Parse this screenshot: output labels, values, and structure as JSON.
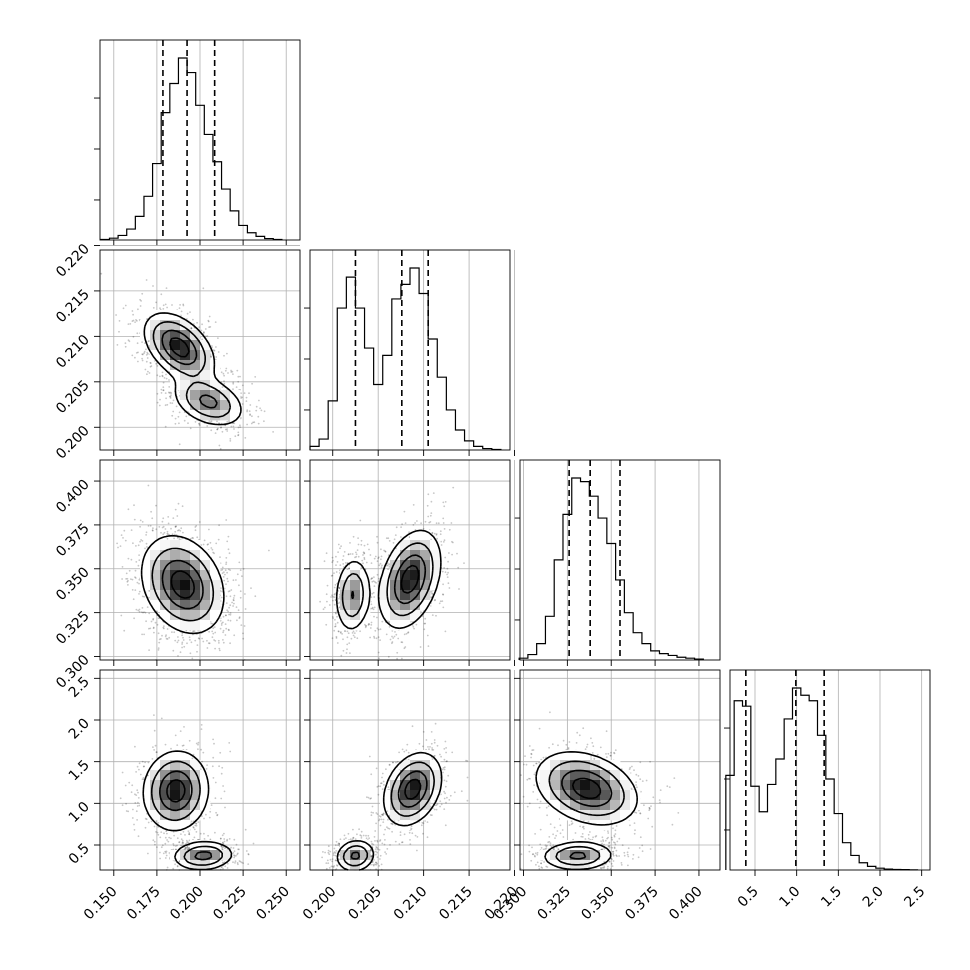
{
  "chart_data": {
    "type": "corner",
    "grid": true,
    "parameters": [
      {
        "range": [
          0.142,
          0.258
        ],
        "ticks": [
          "0.150",
          "0.175",
          "0.200",
          "0.225",
          "0.250"
        ],
        "hist": [
          [
            0.145,
            0.003
          ],
          [
            0.15,
            0.01
          ],
          [
            0.155,
            0.025
          ],
          [
            0.16,
            0.06
          ],
          [
            0.165,
            0.13
          ],
          [
            0.17,
            0.24
          ],
          [
            0.175,
            0.42
          ],
          [
            0.18,
            0.7
          ],
          [
            0.185,
            0.86
          ],
          [
            0.19,
            1.0
          ],
          [
            0.195,
            0.92
          ],
          [
            0.2,
            0.74
          ],
          [
            0.205,
            0.58
          ],
          [
            0.21,
            0.43
          ],
          [
            0.215,
            0.28
          ],
          [
            0.22,
            0.16
          ],
          [
            0.225,
            0.08
          ],
          [
            0.23,
            0.04
          ],
          [
            0.235,
            0.02
          ],
          [
            0.24,
            0.008
          ],
          [
            0.245,
            0.003
          ]
        ],
        "quantiles": [
          0.1785,
          0.1925,
          0.2085
        ]
      },
      {
        "range": [
          0.1975,
          0.2195
        ],
        "ticks": [
          "0.200",
          "0.205",
          "0.210",
          "0.215",
          "0.220"
        ],
        "yticks": [
          "0.200",
          "0.205",
          "0.210",
          "0.215",
          "0.220"
        ],
        "hist": [
          [
            0.198,
            0.02
          ],
          [
            0.199,
            0.06
          ],
          [
            0.2,
            0.27
          ],
          [
            0.201,
            0.78
          ],
          [
            0.202,
            0.95
          ],
          [
            0.203,
            0.78
          ],
          [
            0.204,
            0.56
          ],
          [
            0.205,
            0.36
          ],
          [
            0.206,
            0.52
          ],
          [
            0.207,
            0.83
          ],
          [
            0.208,
            0.91
          ],
          [
            0.209,
            1.0
          ],
          [
            0.21,
            0.86
          ],
          [
            0.211,
            0.61
          ],
          [
            0.212,
            0.4
          ],
          [
            0.213,
            0.22
          ],
          [
            0.214,
            0.11
          ],
          [
            0.215,
            0.05
          ],
          [
            0.216,
            0.02
          ],
          [
            0.217,
            0.008
          ],
          [
            0.218,
            0.003
          ]
        ],
        "quantiles": [
          0.2025,
          0.2076,
          0.2105
        ]
      },
      {
        "range": [
          0.298,
          0.412
        ],
        "ticks": [
          "0.300",
          "0.325",
          "0.350",
          "0.375",
          "0.400"
        ],
        "yticks": [
          "0.300",
          "0.325",
          "0.350",
          "0.375",
          "0.400"
        ],
        "hist": [
          [
            0.3,
            0.01
          ],
          [
            0.305,
            0.03
          ],
          [
            0.31,
            0.09
          ],
          [
            0.315,
            0.24
          ],
          [
            0.32,
            0.55
          ],
          [
            0.325,
            0.8
          ],
          [
            0.33,
            1.0
          ],
          [
            0.335,
            0.98
          ],
          [
            0.34,
            0.9
          ],
          [
            0.345,
            0.78
          ],
          [
            0.35,
            0.64
          ],
          [
            0.355,
            0.44
          ],
          [
            0.36,
            0.26
          ],
          [
            0.365,
            0.15
          ],
          [
            0.37,
            0.09
          ],
          [
            0.375,
            0.05
          ],
          [
            0.38,
            0.035
          ],
          [
            0.385,
            0.025
          ],
          [
            0.39,
            0.015
          ],
          [
            0.395,
            0.01
          ],
          [
            0.4,
            0.005
          ]
        ],
        "quantiles": [
          0.326,
          0.338,
          0.355
        ]
      },
      {
        "range": [
          0.2,
          2.6
        ],
        "ticks": [
          "0.5",
          "1.0",
          "1.5",
          "2.0",
          "2.5"
        ],
        "yticks": [
          "0.5",
          "1.0",
          "1.5",
          "2.0",
          "2.5"
        ],
        "hist": [
          [
            0.2,
            0.52
          ],
          [
            0.3,
            0.93
          ],
          [
            0.4,
            0.9
          ],
          [
            0.5,
            0.46
          ],
          [
            0.6,
            0.32
          ],
          [
            0.7,
            0.47
          ],
          [
            0.8,
            0.61
          ],
          [
            0.9,
            0.83
          ],
          [
            1.0,
            1.0
          ],
          [
            1.1,
            0.96
          ],
          [
            1.2,
            0.93
          ],
          [
            1.3,
            0.74
          ],
          [
            1.4,
            0.5
          ],
          [
            1.5,
            0.31
          ],
          [
            1.6,
            0.15
          ],
          [
            1.7,
            0.08
          ],
          [
            1.8,
            0.04
          ],
          [
            1.9,
            0.02
          ],
          [
            2.0,
            0.01
          ],
          [
            2.1,
            0.005
          ],
          [
            2.2,
            0.003
          ],
          [
            2.3,
            0.002
          ],
          [
            2.4,
            0.001
          ]
        ],
        "quantiles": [
          0.39,
          0.99,
          1.33
        ]
      }
    ],
    "pairs": [
      {
        "row": 1,
        "col": 0,
        "modes": [
          {
            "mean": [
              0.188,
              0.2088
            ],
            "sd": [
              0.0102,
              0.0019
            ],
            "rho": -0.45,
            "w": 0.58
          },
          {
            "mean": [
              0.205,
              0.2028
            ],
            "sd": [
              0.0105,
              0.0014
            ],
            "rho": -0.35,
            "w": 0.42
          }
        ]
      },
      {
        "row": 2,
        "col": 0,
        "modes": [
          {
            "mean": [
              0.19,
              0.341
            ],
            "sd": [
              0.012,
              0.014
            ],
            "rho": -0.25,
            "w": 1.0
          }
        ]
      },
      {
        "row": 2,
        "col": 1,
        "modes": [
          {
            "mean": [
              0.2022,
              0.335
            ],
            "sd": [
              0.001,
              0.011
            ],
            "rho": 0.1,
            "w": 0.4
          },
          {
            "mean": [
              0.2085,
              0.344
            ],
            "sd": [
              0.0017,
              0.014
            ],
            "rho": 0.35,
            "w": 0.6
          }
        ]
      },
      {
        "row": 3,
        "col": 0,
        "modes": [
          {
            "mean": [
              0.186,
              1.15
            ],
            "sd": [
              0.0095,
              0.24
            ],
            "rho": 0.05,
            "w": 0.58
          },
          {
            "mean": [
              0.202,
              0.37
            ],
            "sd": [
              0.009,
              0.09
            ],
            "rho": 0.1,
            "w": 0.42
          }
        ]
      },
      {
        "row": 3,
        "col": 1,
        "modes": [
          {
            "mean": [
              0.2025,
              0.37
            ],
            "sd": [
              0.0011,
              0.1
            ],
            "rho": 0.1,
            "w": 0.42
          },
          {
            "mean": [
              0.2088,
              1.17
            ],
            "sd": [
              0.0016,
              0.22
            ],
            "rho": 0.3,
            "w": 0.58
          }
        ]
      },
      {
        "row": 3,
        "col": 2,
        "modes": [
          {
            "mean": [
              0.336,
              1.18
            ],
            "sd": [
              0.0145,
              0.22
            ],
            "rho": -0.3,
            "w": 0.58
          },
          {
            "mean": [
              0.331,
              0.37
            ],
            "sd": [
              0.0105,
              0.09
            ],
            "rho": 0.05,
            "w": 0.42
          }
        ]
      }
    ]
  }
}
